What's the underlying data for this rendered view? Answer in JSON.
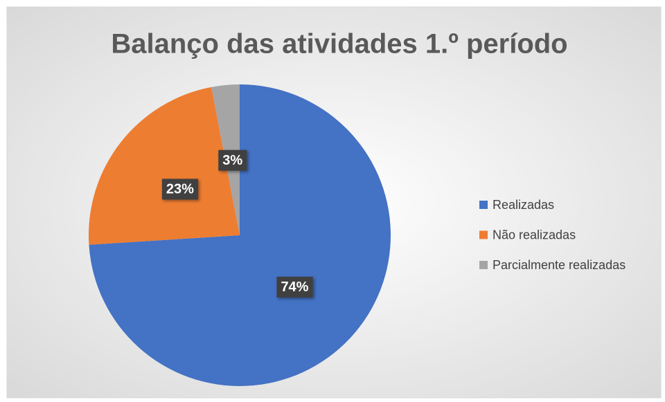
{
  "chart_data": {
    "type": "pie",
    "title": "Balanço das atividades 1.º período",
    "categories": [
      "Realizadas",
      "Não realizadas",
      "Parcialmente realizadas"
    ],
    "values": [
      74,
      23,
      3
    ],
    "value_labels": [
      "74%",
      "23%",
      "3%"
    ],
    "colors": [
      "#4472c4",
      "#ed7d31",
      "#a5a5a5"
    ],
    "legend": "right"
  }
}
